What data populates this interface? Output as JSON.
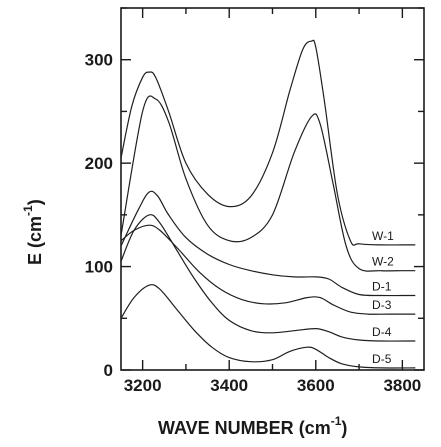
{
  "chart_data": {
    "type": "line",
    "xlabel": "WAVE NUMBER",
    "xlabel_unit": "(cm",
    "xlabel_unit_exp": "-1",
    "xlabel_unit_close": ")",
    "ylabel": "E (cm",
    "ylabel_exp": "-1",
    "ylabel_close": ")",
    "xlim": [
      3150,
      3850
    ],
    "ylim": [
      0,
      350
    ],
    "x_ticks": [
      3200,
      3400,
      3600,
      3800
    ],
    "y_ticks": [
      0,
      100,
      200,
      300
    ],
    "grid": false,
    "series": [
      {
        "name": "W-1",
        "x": [
          3150,
          3175,
          3200,
          3215,
          3230,
          3260,
          3300,
          3350,
          3400,
          3450,
          3500,
          3540,
          3570,
          3590,
          3600,
          3620,
          3650,
          3680,
          3700,
          3750,
          3800,
          3830
        ],
        "y": [
          205,
          255,
          283,
          288,
          283,
          250,
          200,
          170,
          158,
          168,
          210,
          270,
          310,
          318,
          312,
          260,
          170,
          125,
          122,
          121,
          121,
          121
        ]
      },
      {
        "name": "W-2",
        "x": [
          3150,
          3200,
          3230,
          3260,
          3300,
          3350,
          3400,
          3450,
          3500,
          3550,
          3590,
          3610,
          3640,
          3670,
          3700,
          3750,
          3800,
          3830
        ],
        "y": [
          130,
          250,
          262,
          240,
          185,
          140,
          125,
          128,
          150,
          210,
          245,
          238,
          180,
          120,
          98,
          96,
          96,
          96
        ]
      },
      {
        "name": "D-1",
        "x": [
          3150,
          3190,
          3215,
          3235,
          3260,
          3300,
          3350,
          3400,
          3450,
          3500,
          3550,
          3600,
          3630,
          3660,
          3700,
          3750,
          3800,
          3830
        ],
        "y": [
          120,
          155,
          172,
          168,
          150,
          128,
          112,
          102,
          96,
          92,
          90,
          90,
          88,
          80,
          73,
          72,
          72,
          72
        ]
      },
      {
        "name": "D-3",
        "x": [
          3150,
          3180,
          3215,
          3240,
          3280,
          3330,
          3380,
          3430,
          3480,
          3530,
          3580,
          3610,
          3640,
          3680,
          3720,
          3770,
          3830
        ],
        "y": [
          125,
          135,
          140,
          135,
          118,
          95,
          78,
          68,
          64,
          65,
          70,
          70,
          63,
          56,
          54,
          54,
          54
        ]
      },
      {
        "name": "D-4",
        "x": [
          3150,
          3180,
          3215,
          3240,
          3280,
          3320,
          3360,
          3400,
          3450,
          3500,
          3550,
          3600,
          3630,
          3660,
          3700,
          3750,
          3830
        ],
        "y": [
          105,
          135,
          150,
          142,
          115,
          88,
          65,
          48,
          38,
          36,
          38,
          40,
          37,
          32,
          29,
          28,
          28
        ]
      },
      {
        "name": "D-5",
        "x": [
          3150,
          3180,
          3215,
          3240,
          3280,
          3320,
          3360,
          3400,
          3450,
          3500,
          3540,
          3580,
          3600,
          3630,
          3660,
          3700,
          3750,
          3830
        ],
        "y": [
          50,
          70,
          82,
          78,
          58,
          38,
          22,
          12,
          8,
          10,
          18,
          22,
          20,
          12,
          6,
          3,
          2,
          2
        ]
      }
    ]
  }
}
